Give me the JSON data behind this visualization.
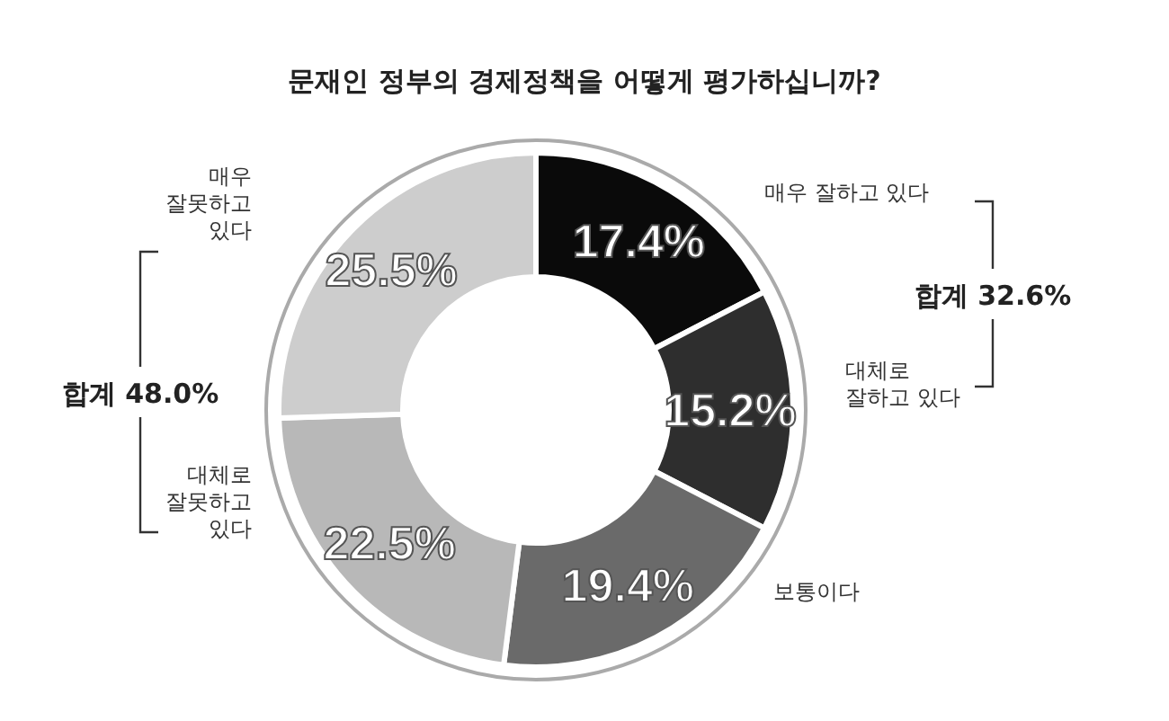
{
  "chart_data": {
    "type": "donut",
    "title": "문재인 정부의 경제정책을 어떻게 평가하십니까?",
    "categories": [
      "매우 잘하고 있다",
      "대체로\n잘하고 있다",
      "보통이다",
      "대체로\n잘못하고\n있다",
      "매우\n잘못하고\n있다"
    ],
    "values": [
      17.4,
      15.2,
      19.4,
      22.5,
      25.5
    ],
    "colors": [
      "#0a0a0a",
      "#2e2e2e",
      "#6a6a6a",
      "#b8b8b8",
      "#cdcdcd"
    ],
    "value_labels": [
      "17.4%",
      "15.2%",
      "19.4%",
      "22.5%",
      "25.5%"
    ],
    "annotations": [
      "합계 32.6%",
      "합계 48.0%"
    ]
  }
}
